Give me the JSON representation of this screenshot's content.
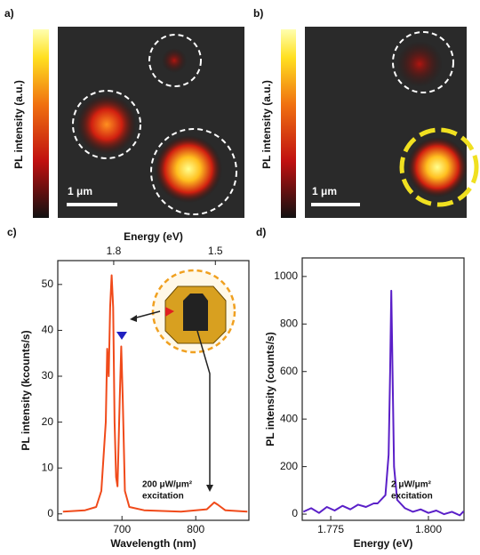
{
  "images": [
    {
      "label": "a)",
      "colorbar_label": "PL intensity (a.u.)",
      "scale_bar": "1 μm"
    },
    {
      "label": "b)",
      "colorbar_label": "PL intensity (a.u.)",
      "scale_bar": "1 μm"
    }
  ],
  "chart_data": [
    {
      "type": "line",
      "label": "c)",
      "xlabel": "Wavelength (nm)",
      "ylabel": "PL intensity (kcounts/s)",
      "x2label": "Energy (eV)",
      "x": [
        620,
        650,
        665,
        672,
        678,
        680,
        682,
        684,
        686,
        688,
        690,
        692,
        694,
        697,
        699,
        701,
        704,
        710,
        730,
        780,
        815,
        825,
        830,
        840,
        870
      ],
      "series": [
        {
          "color": "#f04a1a",
          "values": [
            0.5,
            0.8,
            1.5,
            5,
            20,
            36,
            30,
            45,
            52,
            45,
            20,
            8,
            6,
            25,
            36.5,
            25,
            5,
            1.5,
            0.8,
            0.5,
            1,
            2.5,
            2,
            0.8,
            0.5
          ]
        }
      ],
      "xlim": [
        613,
        872
      ],
      "xticks": [
        700,
        800
      ],
      "ylim": [
        -1.4,
        55.2
      ],
      "yticks": [
        0,
        10,
        20,
        30,
        40,
        50
      ],
      "x2ticks": [
        1.8,
        1.5
      ],
      "annotations": [
        "200 μW/μm²",
        "excitation"
      ]
    },
    {
      "type": "line",
      "label": "d)",
      "xlabel": "Energy (eV)",
      "ylabel": "PL intensity (counts/s)",
      "x": [
        1.768,
        1.77,
        1.772,
        1.774,
        1.776,
        1.778,
        1.78,
        1.782,
        1.784,
        1.786,
        1.787,
        1.789,
        1.7898,
        1.7902,
        1.7905,
        1.7908,
        1.7912,
        1.792,
        1.794,
        1.796,
        1.798,
        1.8,
        1.802,
        1.804,
        1.806,
        1.808,
        1.809
      ],
      "series": [
        {
          "color": "#5a1fc8",
          "values": [
            10,
            25,
            5,
            30,
            15,
            35,
            20,
            40,
            30,
            45,
            45,
            80,
            250,
            600,
            940,
            600,
            200,
            60,
            25,
            10,
            20,
            5,
            15,
            0,
            10,
            -5,
            12
          ]
        }
      ],
      "xlim": [
        1.7677,
        1.8091
      ],
      "xticks": [
        1.775,
        {
          "value": 1.8,
          "label": "1.800"
        }
      ],
      "ylim": [
        -26,
        1078
      ],
      "yticks": [
        0,
        200,
        400,
        600,
        800,
        1000
      ],
      "annotations": [
        "2 μW/μm²",
        "excitation"
      ]
    }
  ]
}
